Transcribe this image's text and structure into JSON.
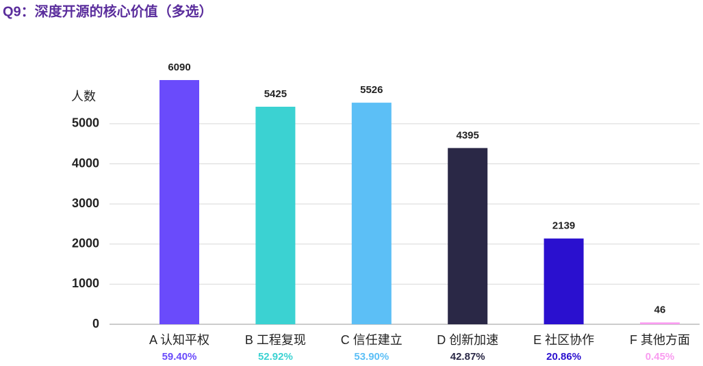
{
  "chart_data": {
    "type": "bar",
    "title": "Q9：深度开源的核心价值（多选）",
    "y_label": "人数",
    "categories": [
      "A 认知平权",
      "B 工程复现",
      "C 信任建立",
      "D 创新加速",
      "E 社区协作",
      "F 其他方面"
    ],
    "values": [
      6090,
      5425,
      5526,
      4395,
      2139,
      46
    ],
    "category_notes": [
      "59.40%",
      "52.92%",
      "53.90%",
      "42.87%",
      "20.86%",
      "0.45%"
    ],
    "colors": [
      "#6a4bfb",
      "#3bd2d2",
      "#5cbff6",
      "#2a2846",
      "#2a10cf",
      "#f99cf0"
    ],
    "ylim": [
      0,
      6500
    ],
    "yticks": [
      0,
      1000,
      2000,
      3000,
      4000,
      5000
    ],
    "grid": true
  }
}
